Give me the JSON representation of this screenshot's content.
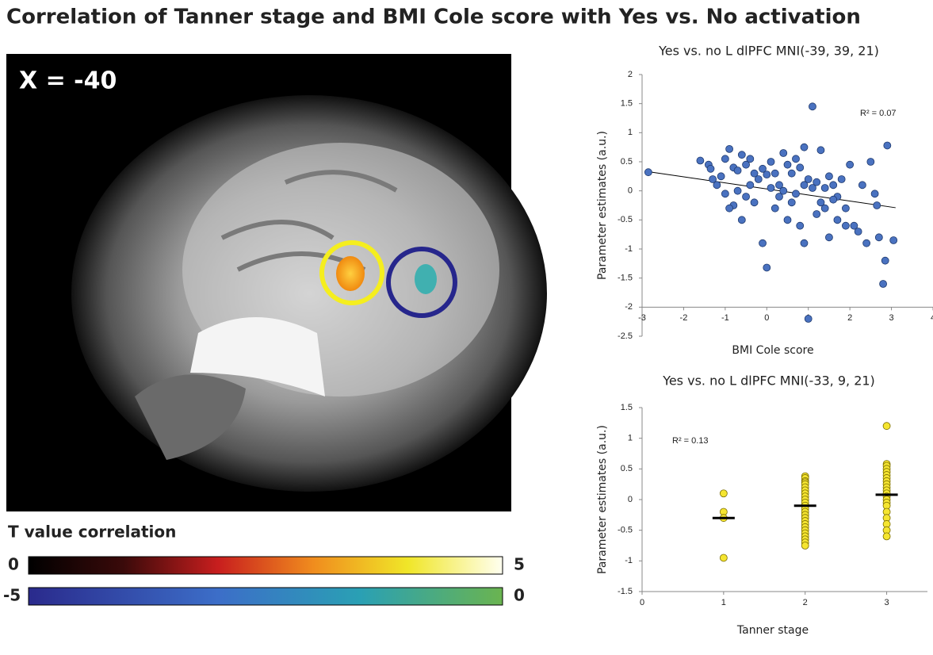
{
  "title": "Correlation of Tanner stage and BMI Cole score with Yes vs. No activation",
  "brain": {
    "label": "X = -40"
  },
  "colorbar": {
    "title": "T value correlation",
    "positive": {
      "min": 0,
      "max": 5
    },
    "negative": {
      "min": -5,
      "max": 0
    }
  },
  "chart_data": [
    {
      "type": "scatter",
      "title": "Yes vs. no L dlPFC MNI(-39, 39, 21)",
      "x_label": "BMI Cole score",
      "y_label": "Parameter estimates (a.u.)",
      "annotation": "R² = 0.07",
      "color": "#4a72c0",
      "x": [
        -2.85,
        -1.6,
        -1.4,
        -1.35,
        -1.2,
        -1.1,
        -1.0,
        -0.9,
        -0.8,
        -0.7,
        -0.6,
        -0.5,
        -0.4,
        -0.3,
        -0.2,
        -0.1,
        0,
        0.1,
        0.2,
        0.3,
        0.4,
        0.5,
        0.6,
        0.7,
        0.8,
        0.9,
        1.0,
        1.1,
        1.2,
        1.3,
        1.4,
        1.5,
        1.6,
        1.7,
        1.8,
        1.9,
        2.0,
        2.1,
        2.3,
        2.5,
        2.6,
        2.65,
        2.7,
        2.8,
        2.85,
        2.9,
        3.05,
        -1.0,
        -0.8,
        -0.6,
        -0.5,
        -0.3,
        -0.1,
        0,
        0.2,
        0.3,
        0.5,
        0.6,
        0.8,
        0.9,
        1.0,
        1.2,
        1.4,
        1.5,
        1.7,
        1.9,
        2.2,
        2.4,
        0.4,
        0.7,
        1.1,
        -0.4,
        -0.7,
        -0.9,
        -1.3,
        0.1,
        1.6,
        1.3,
        0.9
      ],
      "y": [
        0.32,
        0.52,
        0.45,
        0.38,
        0.1,
        0.25,
        0.55,
        0.72,
        0.4,
        0.35,
        0.62,
        0.45,
        0.55,
        0.3,
        0.2,
        0.38,
        0.28,
        0.5,
        0.3,
        0.1,
        0.65,
        0.45,
        0.3,
        0.55,
        0.4,
        0.75,
        0.2,
        1.45,
        0.15,
        0.7,
        0.05,
        0.25,
        0.1,
        -0.1,
        0.2,
        -0.3,
        0.45,
        -0.6,
        0.1,
        0.5,
        -0.05,
        -0.25,
        -0.8,
        -1.6,
        -1.2,
        0.78,
        -0.85,
        -0.05,
        -0.25,
        -0.5,
        -0.1,
        -0.2,
        -0.9,
        -1.32,
        -0.3,
        -0.1,
        -0.5,
        -0.2,
        -0.6,
        -0.9,
        -2.2,
        -0.4,
        -0.3,
        -0.8,
        -0.5,
        -0.6,
        -0.7,
        -0.9,
        0,
        -0.05,
        0.05,
        0.1,
        0,
        -0.3,
        0.2,
        0.05,
        -0.15,
        -0.2,
        0.1
      ],
      "trendline": {
        "x": [
          -2.85,
          3.1
        ],
        "y": [
          0.33,
          -0.29
        ]
      },
      "xlim": [
        -3,
        4
      ],
      "xticks": [
        -3,
        -2,
        -1,
        0,
        1,
        2,
        3,
        4
      ],
      "x_axis_at": -2,
      "ylim": [
        -2.5,
        2
      ],
      "yticks": [
        -2.5,
        -2,
        -1.5,
        -1,
        -0.5,
        0,
        0.5,
        1,
        1.5,
        2
      ]
    },
    {
      "type": "strip",
      "title": "Yes vs. no L dlPFC MNI(-33, 9, 21)",
      "x_label": "Tanner stage",
      "y_label": "Parameter estimates (a.u.)",
      "annotation": "R² = 0.13",
      "color": "#f5e530",
      "x": [
        1,
        1,
        1,
        1,
        2,
        2,
        2,
        2,
        2,
        2,
        2,
        2,
        2,
        2,
        2,
        2,
        2,
        2,
        2,
        2,
        2,
        2,
        2,
        2,
        2,
        2,
        2,
        2,
        2,
        3,
        3,
        3,
        3,
        3,
        3,
        3,
        3,
        3,
        3,
        3,
        3,
        3,
        3,
        3,
        3,
        3,
        3,
        3,
        3,
        3
      ],
      "y": [
        0.1,
        -0.2,
        -0.3,
        -0.95,
        0.38,
        0.35,
        0.3,
        0.28,
        0.25,
        0.2,
        0.15,
        0.1,
        0.05,
        0,
        -0.05,
        -0.1,
        -0.15,
        -0.2,
        -0.25,
        -0.3,
        -0.35,
        -0.4,
        -0.45,
        -0.5,
        -0.55,
        -0.6,
        -0.65,
        -0.7,
        -0.75,
        1.2,
        0.58,
        0.55,
        0.5,
        0.45,
        0.4,
        0.35,
        0.3,
        0.25,
        0.2,
        0.15,
        0.1,
        0.05,
        0,
        -0.05,
        -0.1,
        -0.2,
        -0.3,
        -0.4,
        -0.5,
        -0.6
      ],
      "means": {
        "x": [
          1,
          2,
          3
        ],
        "values": [
          -0.3,
          -0.1,
          0.08
        ]
      },
      "xlim": [
        0,
        3.5
      ],
      "xticks": [
        0,
        1,
        2,
        3
      ],
      "ylim": [
        -1.5,
        1.5
      ],
      "yticks": [
        -1.5,
        -1,
        -0.5,
        0,
        0.5,
        1,
        1.5
      ]
    }
  ]
}
